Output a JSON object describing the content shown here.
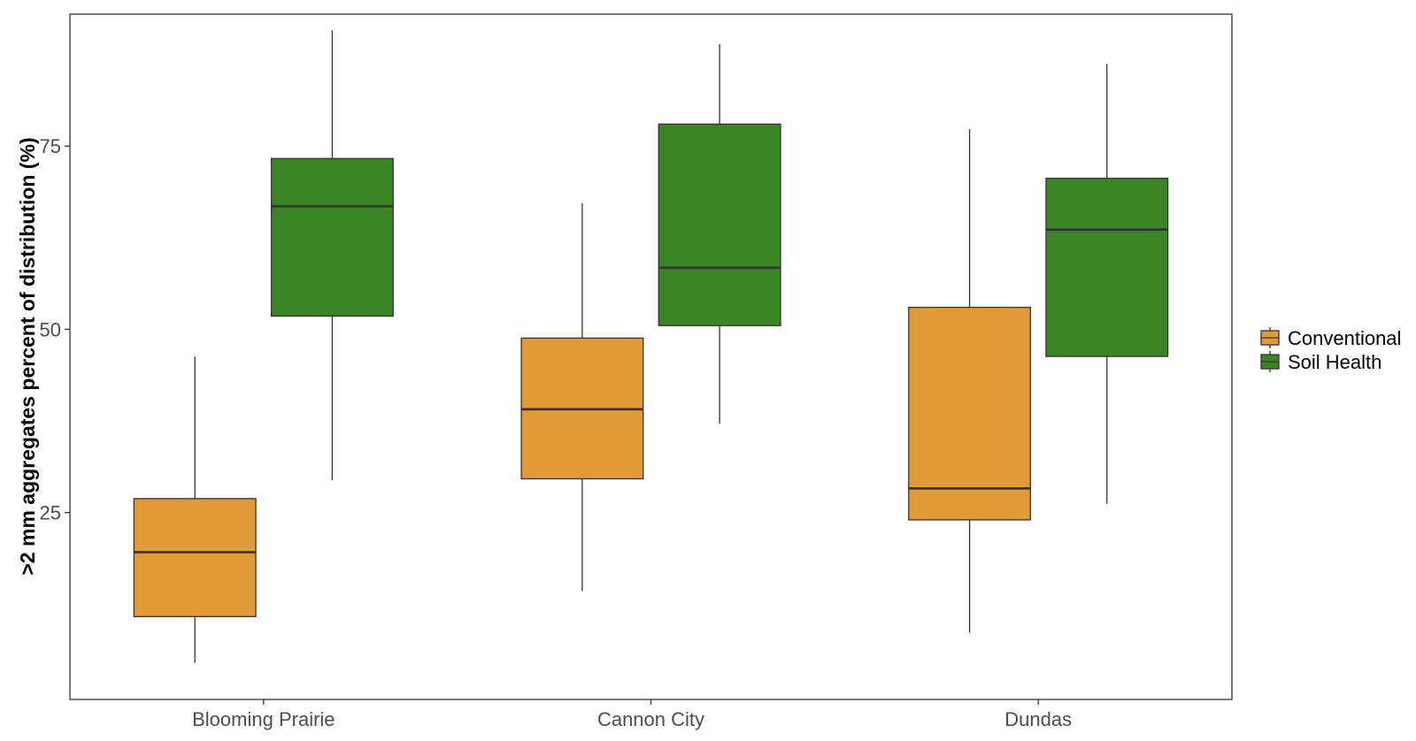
{
  "chart_data": {
    "type": "boxplot",
    "title": "",
    "xlabel": "",
    "ylabel": ">2 mm aggregates percent of distribution (%)",
    "ylim": [
      -0.5,
      93
    ],
    "yticks": [
      25,
      50,
      75
    ],
    "grid": false,
    "legend_position": "right",
    "categories": [
      "Blooming Prairie",
      "Cannon City",
      "Dundas"
    ],
    "series": [
      {
        "name": "Conventional",
        "color": "#E09B38",
        "boxes": [
          {
            "min": 4.5,
            "q1": 10.8,
            "median": 19.6,
            "q3": 26.9,
            "max": 46.3
          },
          {
            "min": 14.3,
            "q1": 29.6,
            "median": 39.1,
            "q3": 48.8,
            "max": 67.2
          },
          {
            "min": 8.6,
            "q1": 24.0,
            "median": 28.3,
            "q3": 53.0,
            "max": 77.3
          }
        ]
      },
      {
        "name": "Soil Health",
        "color": "#3A8425",
        "boxes": [
          {
            "min": 29.4,
            "q1": 51.8,
            "median": 66.8,
            "q3": 73.3,
            "max": 90.8
          },
          {
            "min": 37.1,
            "q1": 50.5,
            "median": 58.4,
            "q3": 78.0,
            "max": 88.9
          },
          {
            "min": 26.2,
            "q1": 46.3,
            "median": 63.6,
            "q3": 70.6,
            "max": 86.2
          }
        ]
      }
    ]
  }
}
